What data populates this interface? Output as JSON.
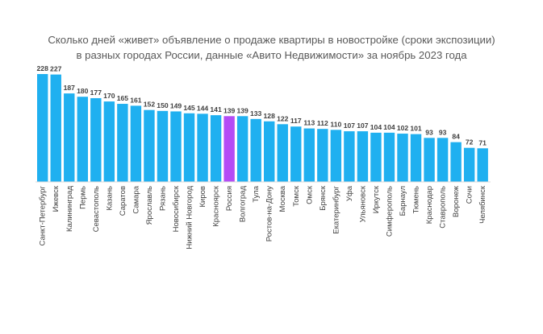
{
  "chart_data": {
    "type": "bar",
    "title_line1": "Сколько дней «живет» объявление о продаже квартиры в новостройке (сроки экспозиции)",
    "title_line2": "в разных городах России, данные «Авито Недвижимости» за ноябрь 2023 года",
    "xlabel": "",
    "ylabel": "",
    "grid": false,
    "legend": "none",
    "ylim": [
      0,
      228
    ],
    "colors": {
      "bar": "#1FB0F0",
      "highlight": "#B44CF5",
      "axis": "#D9D9D9"
    },
    "highlight_category": "Россия",
    "categories": [
      "Санкт-Петербург",
      "Ижевск",
      "Калининград",
      "Пермь",
      "Севастополь",
      "Казань",
      "Саратов",
      "Самара",
      "Ярославль",
      "Рязань",
      "Новосибирск",
      "Нижний Новгород",
      "Киров",
      "Красноярск",
      "Россия",
      "Волгоград",
      "Тула",
      "Ростов-на-Дону",
      "Москва",
      "Томск",
      "Омск",
      "Брянск",
      "Екатеринбург",
      "Уфа",
      "Ульяновск",
      "Иркутск",
      "Симферополь",
      "Барнаул",
      "Тюмень",
      "Краснодар",
      "Ставрополь",
      "Воронеж",
      "Сочи",
      "Челябинск"
    ],
    "values": [
      228,
      227,
      187,
      180,
      177,
      170,
      165,
      161,
      152,
      150,
      149,
      145,
      144,
      141,
      139,
      139,
      133,
      128,
      122,
      117,
      113,
      112,
      110,
      107,
      107,
      104,
      104,
      102,
      101,
      93,
      93,
      84,
      72,
      71
    ]
  }
}
